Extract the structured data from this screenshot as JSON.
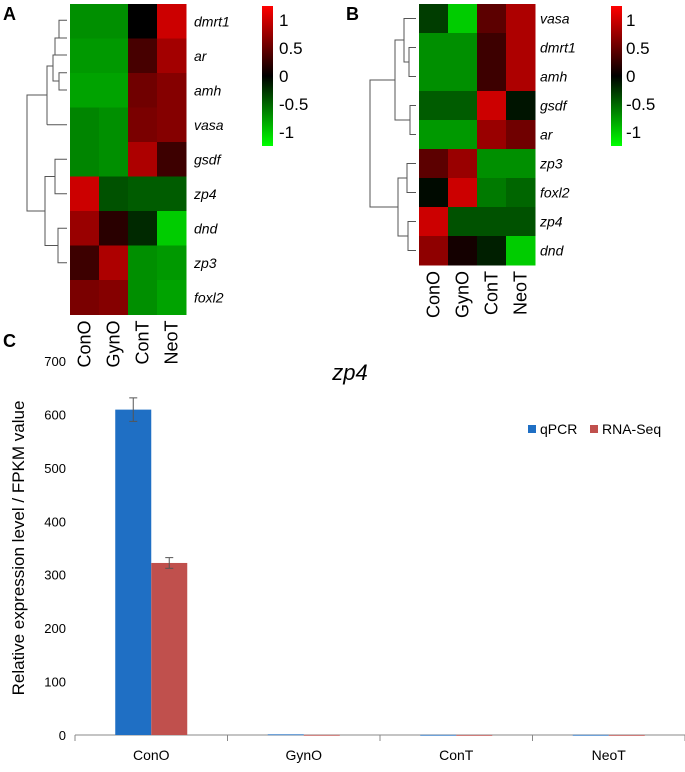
{
  "panels": {
    "a_label": "A",
    "b_label": "B",
    "c_label": "C"
  },
  "heatmap_scale": {
    "ticks": [
      "1",
      "0.5",
      "0",
      "-0.5",
      "-1"
    ],
    "colors": {
      "high": "#ff0000",
      "mid": "#000000",
      "low": "#00ff00"
    }
  },
  "chart_data": [
    {
      "type": "heatmap",
      "panel": "A",
      "columns": [
        "ConO",
        "GynO",
        "ConT",
        "NeoT"
      ],
      "rows": [
        "dmrt1",
        "ar",
        "amh",
        "vasa",
        "gsdf",
        "zp4",
        "dnd",
        "zp3",
        "foxl2"
      ],
      "values": [
        [
          -0.7,
          -0.7,
          0.0,
          1.0
        ],
        [
          -0.75,
          -0.75,
          0.35,
          0.8
        ],
        [
          -0.8,
          -0.8,
          0.55,
          0.65
        ],
        [
          -0.65,
          -0.7,
          0.6,
          0.65
        ],
        [
          -0.65,
          -0.7,
          0.85,
          0.3
        ],
        [
          1.0,
          -0.4,
          -0.45,
          -0.45
        ],
        [
          0.75,
          0.2,
          -0.2,
          -1.0
        ],
        [
          0.3,
          0.85,
          -0.7,
          -0.75
        ],
        [
          0.6,
          0.65,
          -0.7,
          -0.8
        ]
      ],
      "range": [
        -1.25,
        1.25
      ]
    },
    {
      "type": "heatmap",
      "panel": "B",
      "columns": [
        "ConO",
        "GynO",
        "ConT",
        "NeoT"
      ],
      "rows": [
        "vasa",
        "dmrt1",
        "amh",
        "gsdf",
        "ar",
        "zp3",
        "foxl2",
        "zp4",
        "dnd"
      ],
      "values": [
        [
          -0.3,
          -1.0,
          0.45,
          0.85
        ],
        [
          -0.7,
          -0.7,
          0.3,
          0.85
        ],
        [
          -0.7,
          -0.7,
          0.3,
          0.85
        ],
        [
          -0.45,
          -0.45,
          1.0,
          -0.1
        ],
        [
          -0.75,
          -0.75,
          0.75,
          0.55
        ],
        [
          0.45,
          0.75,
          -0.7,
          -0.7
        ],
        [
          -0.05,
          1.0,
          -0.6,
          -0.5
        ],
        [
          1.0,
          -0.4,
          -0.4,
          -0.4
        ],
        [
          0.7,
          0.1,
          -0.15,
          -1.0
        ]
      ],
      "range": [
        -1.25,
        1.25
      ]
    },
    {
      "type": "bar",
      "panel": "C",
      "title": "zp4",
      "ylabel": "Relative expression level / FPKM value",
      "xlabel": "",
      "categories": [
        "ConO",
        "GynO",
        "ConT",
        "NeoT"
      ],
      "ylim": [
        0,
        700
      ],
      "yticks": [
        "0",
        "100",
        "200",
        "300",
        "400",
        "500",
        "600",
        "700"
      ],
      "series": [
        {
          "name": "qPCR",
          "color": "#1f6fc4",
          "values": [
            609,
            1.2,
            0.3,
            0.3
          ],
          "errors": [
            22,
            0,
            0,
            0
          ]
        },
        {
          "name": "RNA-Seq",
          "color": "#c0504d",
          "values": [
            322,
            0.2,
            0.1,
            0.1
          ],
          "errors": [
            10,
            0,
            0,
            0
          ]
        }
      ],
      "legend": "top-right"
    }
  ]
}
